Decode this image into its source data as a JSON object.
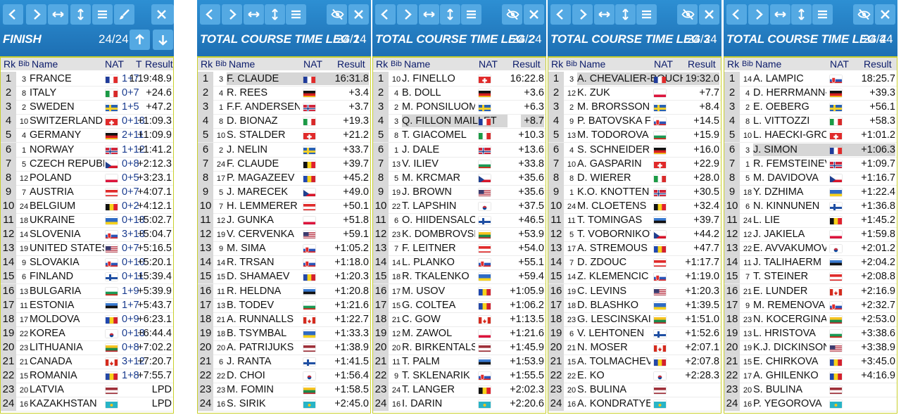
{
  "header_labels": {
    "rk": "Rk",
    "bib": "Bib",
    "name": "Name",
    "nat": "NAT",
    "t": "T",
    "result": "Result"
  },
  "flag_colors": {
    "FRA": [
      "#1f3b9a",
      "#ffffff",
      "#e02b2b"
    ],
    "ITA": [
      "#1b9a45",
      "#ffffff",
      "#d82a2a"
    ],
    "SWE": [
      "#2a62b0",
      "#f4d02a"
    ],
    "SUI": [
      "#e02a2a",
      "#ffffff"
    ],
    "GER": [
      "#111111",
      "#d81f1f",
      "#f7c91d"
    ],
    "NOR": [
      "#d0263c",
      "#ffffff",
      "#1c3c8a"
    ],
    "CZE": [
      "#ffffff",
      "#d7142a",
      "#1f3f8f"
    ],
    "POL": [
      "#ffffff",
      "#dc143c"
    ],
    "AUT": [
      "#e02a2a",
      "#ffffff",
      "#e02a2a"
    ],
    "BEL": [
      "#111111",
      "#f6d21b",
      "#e0212e"
    ],
    "UKR": [
      "#2f6bc5",
      "#f7d21b"
    ],
    "SLO": [
      "#ffffff",
      "#2a55b8",
      "#e02a2a"
    ],
    "USA": [
      "#b22234",
      "#ffffff",
      "#3c3b6e"
    ],
    "SVK": [
      "#ffffff",
      "#2a55b8",
      "#e02a2a"
    ],
    "FIN": [
      "#ffffff",
      "#1f4fa3"
    ],
    "BUL": [
      "#ffffff",
      "#1b9a55",
      "#d9261c"
    ],
    "EST": [
      "#3a7bd1",
      "#111111",
      "#ffffff"
    ],
    "MDA": [
      "#1f47b0",
      "#f6d21b",
      "#d3202e"
    ],
    "KOR": [
      "#ffffff",
      "#cd2e3a",
      "#0047a0"
    ],
    "LTU": [
      "#f6c320",
      "#1b8a4c",
      "#c42a31"
    ],
    "CAN": [
      "#d52b1e",
      "#ffffff",
      "#d52b1e"
    ],
    "ROU": [
      "#2448a8",
      "#f6d21b",
      "#d3202e"
    ],
    "LAT": [
      "#9e3039",
      "#ffffff",
      "#9e3039"
    ],
    "KAZ": [
      "#28b4c6",
      "#f2c31b"
    ]
  },
  "panels": [
    {
      "title": "FINISH",
      "count": "24/24",
      "show_t": true,
      "show_arrows": true,
      "highlight": [],
      "rows": [
        [
          "1",
          "3",
          "FRANCE",
          "FRA",
          "1+7",
          "1:19:48.9"
        ],
        [
          "2",
          "8",
          "ITALY",
          "ITA",
          "0+7",
          "+24.6"
        ],
        [
          "3",
          "2",
          "SWEDEN",
          "SWE",
          "1+5",
          "+47.2"
        ],
        [
          "4",
          "10",
          "SWITZERLAND",
          "SUI",
          "0+13",
          "+1:09.3"
        ],
        [
          "5",
          "4",
          "GERMANY",
          "GER",
          "2+11",
          "+1:09.9"
        ],
        [
          "6",
          "1",
          "NORWAY",
          "NOR",
          "1+12",
          "+1:41.2"
        ],
        [
          "7",
          "5",
          "CZECH REPUBLIC",
          "CZE",
          "0+8",
          "+2:12.3"
        ],
        [
          "8",
          "12",
          "POLAND",
          "POL",
          "0+5",
          "+3:23.1"
        ],
        [
          "9",
          "7",
          "AUSTRIA",
          "AUT",
          "0+7",
          "+4:07.1"
        ],
        [
          "10",
          "24",
          "BELGIUM",
          "BEL",
          "0+2",
          "+4:12.1"
        ],
        [
          "11",
          "18",
          "UKRAINE",
          "UKR",
          "0+13",
          "+5:02.7"
        ],
        [
          "12",
          "14",
          "SLOVENIA",
          "SLO",
          "3+13",
          "+5:04.7"
        ],
        [
          "13",
          "19",
          "UNITED STATES",
          "USA",
          "0+7",
          "+5:16.5"
        ],
        [
          "14",
          "9",
          "SLOVAKIA",
          "SVK",
          "0+10",
          "+5:20.1"
        ],
        [
          "15",
          "6",
          "FINLAND",
          "FIN",
          "0+11",
          "+5:39.4"
        ],
        [
          "16",
          "13",
          "BULGARIA",
          "BUL",
          "1+9",
          "+5:39.9"
        ],
        [
          "17",
          "11",
          "ESTONIA",
          "EST",
          "1+7",
          "+5:43.7"
        ],
        [
          "18",
          "17",
          "MOLDOVA",
          "MDA",
          "0+9",
          "+6:23.1"
        ],
        [
          "19",
          "22",
          "KOREA",
          "KOR",
          "0+13",
          "+6:44.4"
        ],
        [
          "20",
          "23",
          "LITHUANIA",
          "LTU",
          "0+8",
          "+7:02.2"
        ],
        [
          "21",
          "21",
          "CANADA",
          "CAN",
          "3+12",
          "+7:20.7"
        ],
        [
          "22",
          "15",
          "ROMANIA",
          "ROU",
          "1+8",
          "+7:55.7"
        ],
        [
          "23",
          "20",
          "LATVIA",
          "LAT",
          "",
          "LPD"
        ],
        [
          "24",
          "16",
          "KAZAKHSTAN",
          "KAZ",
          "",
          "LPD"
        ]
      ]
    },
    {
      "title": "TOTAL COURSE TIME LEG 1",
      "count": "24/24",
      "show_t": false,
      "show_arrows": false,
      "highlight": [
        0
      ],
      "rows": [
        [
          "1",
          "3",
          "F. CLAUDE",
          "FRA",
          "",
          "16:31.8"
        ],
        [
          "2",
          "4",
          "R. REES",
          "GER",
          "",
          "+3.4"
        ],
        [
          "3",
          "1",
          "F.F. ANDERSEN",
          "NOR",
          "",
          "+3.7"
        ],
        [
          "4",
          "8",
          "D. BIONAZ",
          "ITA",
          "",
          "+19.3"
        ],
        [
          "5",
          "10",
          "S. STALDER",
          "SUI",
          "",
          "+21.2"
        ],
        [
          "6",
          "2",
          "J. NELIN",
          "SWE",
          "",
          "+33.7"
        ],
        [
          "7",
          "24",
          "F. CLAUDE",
          "BEL",
          "",
          "+39.7"
        ],
        [
          "8",
          "17",
          "P. MAGAZEEV",
          "MDA",
          "",
          "+45.2"
        ],
        [
          "9",
          "5",
          "J. MARECEK",
          "CZE",
          "",
          "+49.0"
        ],
        [
          "10",
          "7",
          "H. LEMMERER",
          "AUT",
          "",
          "+50.1"
        ],
        [
          "11",
          "12",
          "J. GUNKA",
          "POL",
          "",
          "+51.8"
        ],
        [
          "12",
          "19",
          "V. CERVENKA",
          "USA",
          "",
          "+59.1"
        ],
        [
          "13",
          "9",
          "M. SIMA",
          "SVK",
          "",
          "+1:05.2"
        ],
        [
          "14",
          "14",
          "R. TRSAN",
          "SLO",
          "",
          "+1:18.0"
        ],
        [
          "15",
          "15",
          "D. SHAMAEV",
          "ROU",
          "",
          "+1:20.3"
        ],
        [
          "16",
          "11",
          "R. HELDNA",
          "EST",
          "",
          "+1:20.8"
        ],
        [
          "17",
          "13",
          "B. TODEV",
          "BUL",
          "",
          "+1:21.6"
        ],
        [
          "18",
          "21",
          "A. RUNNALLS",
          "CAN",
          "",
          "+1:22.7"
        ],
        [
          "19",
          "18",
          "B. TSYMBAL",
          "UKR",
          "",
          "+1:33.3"
        ],
        [
          "20",
          "20",
          "A. PATRIJUKS",
          "LAT",
          "",
          "+1:38.9"
        ],
        [
          "21",
          "6",
          "J. RANTA",
          "FIN",
          "",
          "+1:41.5"
        ],
        [
          "22",
          "22",
          "D. CHOI",
          "KOR",
          "",
          "+1:56.4"
        ],
        [
          "23",
          "23",
          "M. FOMIN",
          "LTU",
          "",
          "+1:58.5"
        ],
        [
          "24",
          "16",
          "S. SIRIK",
          "KAZ",
          "",
          "+2:45.0"
        ]
      ]
    },
    {
      "title": "TOTAL COURSE TIME LEG 2",
      "count": "24/24",
      "show_t": false,
      "show_arrows": false,
      "highlight": [
        3
      ],
      "rows": [
        [
          "1",
          "10",
          "J. FINELLO",
          "SUI",
          "",
          "16:22.8"
        ],
        [
          "2",
          "4",
          "B. DOLL",
          "GER",
          "",
          "+3.6"
        ],
        [
          "3",
          "2",
          "M. PONSILUOMA",
          "SWE",
          "",
          "+6.3"
        ],
        [
          "4",
          "3",
          "Q. FILLON MAILLET",
          "FRA",
          "",
          "+8.7"
        ],
        [
          "5",
          "8",
          "T. GIACOMEL",
          "ITA",
          "",
          "+10.3"
        ],
        [
          "6",
          "1",
          "J. DALE",
          "NOR",
          "",
          "+13.6"
        ],
        [
          "7",
          "13",
          "V. ILIEV",
          "BUL",
          "",
          "+33.8"
        ],
        [
          "8",
          "5",
          "M. KRCMAR",
          "CZE",
          "",
          "+35.6"
        ],
        [
          "9",
          "19",
          "J. BROWN",
          "USA",
          "",
          "+35.6"
        ],
        [
          "10",
          "22",
          "T. LAPSHIN",
          "KOR",
          "",
          "+37.5"
        ],
        [
          "11",
          "6",
          "O. HIIDENSALO",
          "FIN",
          "",
          "+46.5"
        ],
        [
          "12",
          "23",
          "K. DOMBROVSKI",
          "LTU",
          "",
          "+53.9"
        ],
        [
          "13",
          "7",
          "F. LEITNER",
          "AUT",
          "",
          "+54.0"
        ],
        [
          "14",
          "14",
          "L. PLANKO",
          "SLO",
          "",
          "+55.1"
        ],
        [
          "15",
          "18",
          "R. TKALENKO",
          "UKR",
          "",
          "+59.4"
        ],
        [
          "16",
          "17",
          "M. USOV",
          "MDA",
          "",
          "+1:05.9"
        ],
        [
          "17",
          "15",
          "G. COLTEA",
          "ROU",
          "",
          "+1:06.2"
        ],
        [
          "18",
          "21",
          "C. GOW",
          "CAN",
          "",
          "+1:13.5"
        ],
        [
          "19",
          "12",
          "M. ZAWOL",
          "POL",
          "",
          "+1:21.6"
        ],
        [
          "20",
          "20",
          "R. BIRKENTALS",
          "LAT",
          "",
          "+1:45.9"
        ],
        [
          "21",
          "11",
          "T. PALM",
          "EST",
          "",
          "+1:53.9"
        ],
        [
          "22",
          "9",
          "T. SKLENARIK",
          "SVK",
          "",
          "+1:55.5"
        ],
        [
          "23",
          "24",
          "T. LANGER",
          "BEL",
          "",
          "+2:02.3"
        ],
        [
          "24",
          "16",
          "I. DARIN",
          "KAZ",
          "",
          "+2:20.6"
        ]
      ]
    },
    {
      "title": "TOTAL COURSE TIME LEG 3",
      "count": "24/24",
      "show_t": false,
      "show_arrows": false,
      "highlight": [
        0
      ],
      "rows": [
        [
          "1",
          "3",
          "A. CHEVALIER-BOUCHET",
          "FRA",
          "",
          "19:32.0"
        ],
        [
          "2",
          "12",
          "K. ZUK",
          "POL",
          "",
          "+7.7"
        ],
        [
          "3",
          "2",
          "M. BRORSSON",
          "SWE",
          "",
          "+8.4"
        ],
        [
          "4",
          "9",
          "P. BATOVSKA FIALKOVA",
          "SVK",
          "",
          "+14.5"
        ],
        [
          "5",
          "13",
          "M. TODOROVA",
          "BUL",
          "",
          "+15.9"
        ],
        [
          "6",
          "4",
          "S. SCHNEIDER",
          "GER",
          "",
          "+16.0"
        ],
        [
          "7",
          "10",
          "A. GASPARIN",
          "SUI",
          "",
          "+22.9"
        ],
        [
          "8",
          "8",
          "D. WIERER",
          "ITA",
          "",
          "+28.0"
        ],
        [
          "9",
          "1",
          "K.O. KNOTTEN",
          "NOR",
          "",
          "+30.5"
        ],
        [
          "10",
          "24",
          "M. CLOETENS",
          "BEL",
          "",
          "+32.4"
        ],
        [
          "11",
          "11",
          "T. TOMINGAS",
          "EST",
          "",
          "+39.7"
        ],
        [
          "12",
          "5",
          "T. VOBORNIKOVA",
          "CZE",
          "",
          "+44.2"
        ],
        [
          "13",
          "17",
          "A. STREMOUS",
          "MDA",
          "",
          "+47.7"
        ],
        [
          "14",
          "7",
          "D. ZDOUC",
          "AUT",
          "",
          "+1:17.7"
        ],
        [
          "15",
          "14",
          "Z. KLEMENCIC",
          "SLO",
          "",
          "+1:19.0"
        ],
        [
          "16",
          "19",
          "C. LEVINS",
          "USA",
          "",
          "+1:20.3"
        ],
        [
          "17",
          "18",
          "D. BLASHKO",
          "UKR",
          "",
          "+1:39.5"
        ],
        [
          "18",
          "23",
          "G. LESCINSKAITE",
          "LTU",
          "",
          "+1:51.0"
        ],
        [
          "19",
          "6",
          "V. LEHTONEN",
          "FIN",
          "",
          "+1:52.6"
        ],
        [
          "20",
          "21",
          "N. MOSER",
          "CAN",
          "",
          "+2:07.1"
        ],
        [
          "21",
          "15",
          "A. TOLMACHEVA",
          "ROU",
          "",
          "+2:07.8"
        ],
        [
          "22",
          "22",
          "E. KO",
          "KOR",
          "",
          "+2:28.3"
        ],
        [
          "23",
          "20",
          "S. BULINA",
          "LAT",
          "",
          ""
        ],
        [
          "24",
          "16",
          "A. KONDRATYEVA",
          "KAZ",
          "",
          ""
        ]
      ]
    },
    {
      "title": "TOTAL COURSE TIME LEG 4",
      "count": "24/24",
      "show_t": false,
      "show_arrows": false,
      "highlight": [
        5
      ],
      "rows": [
        [
          "1",
          "14",
          "A. LAMPIC",
          "SLO",
          "",
          "18:25.7"
        ],
        [
          "2",
          "4",
          "D. HERRMANN-WICK",
          "GER",
          "",
          "+39.3"
        ],
        [
          "3",
          "2",
          "E. OEBERG",
          "SWE",
          "",
          "+56.1"
        ],
        [
          "4",
          "8",
          "L. VITTOZZI",
          "ITA",
          "",
          "+58.3"
        ],
        [
          "5",
          "10",
          "L. HAECKI-GROSS",
          "SUI",
          "",
          "+1:01.2"
        ],
        [
          "6",
          "3",
          "J. SIMON",
          "FRA",
          "",
          "+1:06.3"
        ],
        [
          "7",
          "1",
          "R. FEMSTEINEVIK",
          "NOR",
          "",
          "+1:09.7"
        ],
        [
          "8",
          "5",
          "M. DAVIDOVA",
          "CZE",
          "",
          "+1:16.7"
        ],
        [
          "9",
          "18",
          "Y. DZHIMA",
          "UKR",
          "",
          "+1:22.4"
        ],
        [
          "10",
          "6",
          "N. KINNUNEN",
          "FIN",
          "",
          "+1:36.8"
        ],
        [
          "11",
          "24",
          "L. LIE",
          "BEL",
          "",
          "+1:45.2"
        ],
        [
          "12",
          "12",
          "J. JAKIELA",
          "POL",
          "",
          "+1:59.8"
        ],
        [
          "13",
          "22",
          "E. AVVAKUMOVA",
          "KOR",
          "",
          "+2:01.2"
        ],
        [
          "14",
          "11",
          "J. TALIHAERM",
          "EST",
          "",
          "+2:04.2"
        ],
        [
          "15",
          "7",
          "T. STEINER",
          "AUT",
          "",
          "+2:08.8"
        ],
        [
          "16",
          "21",
          "E. LUNDER",
          "CAN",
          "",
          "+2:16.9"
        ],
        [
          "17",
          "9",
          "M. REMENOVA",
          "SVK",
          "",
          "+2:32.7"
        ],
        [
          "18",
          "23",
          "N. KOCERGINA",
          "LTU",
          "",
          "+2:53.0"
        ],
        [
          "19",
          "13",
          "L. HRISTOVA",
          "BUL",
          "",
          "+3:38.6"
        ],
        [
          "20",
          "19",
          "K.J. DICKINSON",
          "USA",
          "",
          "+3:38.9"
        ],
        [
          "21",
          "15",
          "E. CHIRKOVA",
          "ROU",
          "",
          "+3:45.0"
        ],
        [
          "22",
          "17",
          "A. GHILENKO",
          "MDA",
          "",
          "+4:16.9"
        ],
        [
          "23",
          "20",
          "S. BULINA",
          "LAT",
          "",
          ""
        ],
        [
          "24",
          "16",
          "P. YEGOROVA",
          "KAZ",
          "",
          ""
        ]
      ]
    }
  ]
}
